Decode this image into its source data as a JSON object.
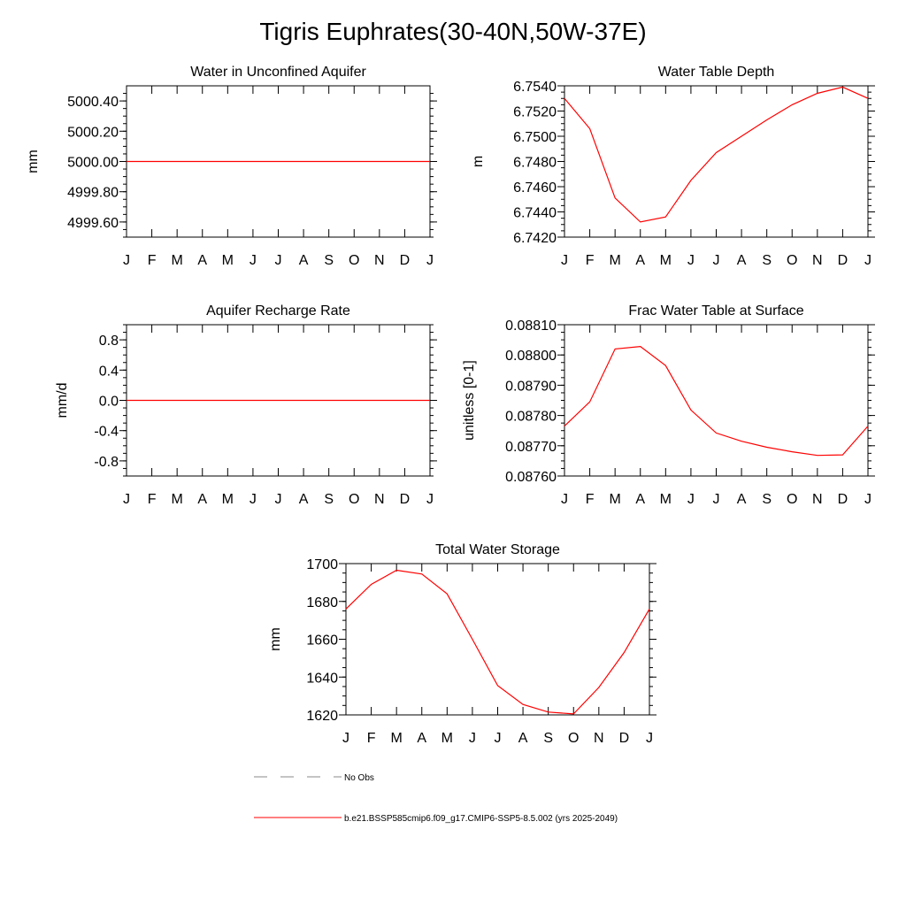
{
  "figure": {
    "title": "Tigris Euphrates(30-40N,50W-37E)"
  },
  "legend": {
    "entries": [
      {
        "label": "No Obs",
        "style": "dashed",
        "color": "#888888"
      },
      {
        "label": "b.e21.BSSP585cmip6.f09_g17.CMIP6-SSP5-8.5.002 (yrs 2025-2049)",
        "style": "solid",
        "color": "#ff0000"
      }
    ]
  },
  "chart_data": [
    {
      "type": "line",
      "title": "Water in Unconfined Aquifer",
      "ylabel": "mm",
      "xlabel": "",
      "categories": [
        "J",
        "F",
        "M",
        "A",
        "M",
        "J",
        "J",
        "A",
        "S",
        "O",
        "N",
        "D",
        "J"
      ],
      "ylim": [
        4999.5,
        5000.5
      ],
      "yticks": [
        "5000.40",
        "5000.20",
        "5000.00",
        "4999.80",
        "4999.60"
      ],
      "ytick_values": [
        5000.4,
        5000.2,
        5000.0,
        4999.8,
        4999.6
      ],
      "series": [
        {
          "color": "#ff0000",
          "values": [
            5000,
            5000,
            5000,
            5000,
            5000,
            5000,
            5000,
            5000,
            5000,
            5000,
            5000,
            5000,
            5000
          ]
        }
      ]
    },
    {
      "type": "line",
      "title": "Water Table Depth",
      "ylabel": "m",
      "xlabel": "",
      "categories": [
        "J",
        "F",
        "M",
        "A",
        "M",
        "J",
        "J",
        "A",
        "S",
        "O",
        "N",
        "D",
        "J"
      ],
      "ylim": [
        6.742,
        6.754
      ],
      "yticks": [
        "6.7540",
        "6.7520",
        "6.7500",
        "6.7480",
        "6.7460",
        "6.7440",
        "6.7420"
      ],
      "ytick_values": [
        6.754,
        6.752,
        6.75,
        6.748,
        6.746,
        6.744,
        6.742
      ],
      "series": [
        {
          "color": "#ff0000",
          "values": [
            6.753,
            6.7506,
            6.7451,
            6.7432,
            6.7436,
            6.7465,
            6.7487,
            6.75,
            6.7513,
            6.7525,
            6.7534,
            6.7539,
            6.753
          ]
        }
      ]
    },
    {
      "type": "line",
      "title": "Aquifer Recharge Rate",
      "ylabel": "mm/d",
      "xlabel": "",
      "categories": [
        "J",
        "F",
        "M",
        "A",
        "M",
        "J",
        "J",
        "A",
        "S",
        "O",
        "N",
        "D",
        "J"
      ],
      "ylim": [
        -1.0,
        1.0
      ],
      "yticks": [
        "0.8",
        "0.4",
        "0.0",
        "-0.4",
        "-0.8"
      ],
      "ytick_values": [
        0.8,
        0.4,
        0.0,
        -0.4,
        -0.8
      ],
      "series": [
        {
          "color": "#ff0000",
          "values": [
            0,
            0,
            0,
            0,
            0,
            0,
            0,
            0,
            0,
            0,
            0,
            0,
            0
          ]
        }
      ]
    },
    {
      "type": "line",
      "title": "Frac Water Table at Surface",
      "ylabel": "unitless [0-1]",
      "xlabel": "",
      "categories": [
        "J",
        "F",
        "M",
        "A",
        "M",
        "J",
        "J",
        "A",
        "S",
        "O",
        "N",
        "D",
        "J"
      ],
      "ylim": [
        0.0876,
        0.0881
      ],
      "yticks": [
        "0.08810",
        "0.08800",
        "0.08790",
        "0.08780",
        "0.08770",
        "0.08760"
      ],
      "ytick_values": [
        0.0881,
        0.088,
        0.0879,
        0.0878,
        0.0877,
        0.0876
      ],
      "series": [
        {
          "color": "#ff0000",
          "values": [
            0.087765,
            0.087845,
            0.08802,
            0.088028,
            0.087965,
            0.087818,
            0.087742,
            0.087715,
            0.087695,
            0.08768,
            0.087668,
            0.08767,
            0.087765
          ]
        }
      ]
    },
    {
      "type": "line",
      "title": "Total Water Storage",
      "ylabel": "mm",
      "xlabel": "",
      "categories": [
        "J",
        "F",
        "M",
        "A",
        "M",
        "J",
        "J",
        "A",
        "S",
        "O",
        "N",
        "D",
        "J"
      ],
      "ylim": [
        1620,
        1700
      ],
      "yticks": [
        "1700",
        "1680",
        "1660",
        "1640",
        "1620"
      ],
      "ytick_values": [
        1700,
        1680,
        1660,
        1640,
        1620
      ],
      "series": [
        {
          "color": "#ff0000",
          "values": [
            1676,
            1689,
            1696.5,
            1694.5,
            1684,
            1660,
            1635.5,
            1625.5,
            1621.5,
            1620.5,
            1634.5,
            1653,
            1676
          ]
        }
      ]
    }
  ]
}
